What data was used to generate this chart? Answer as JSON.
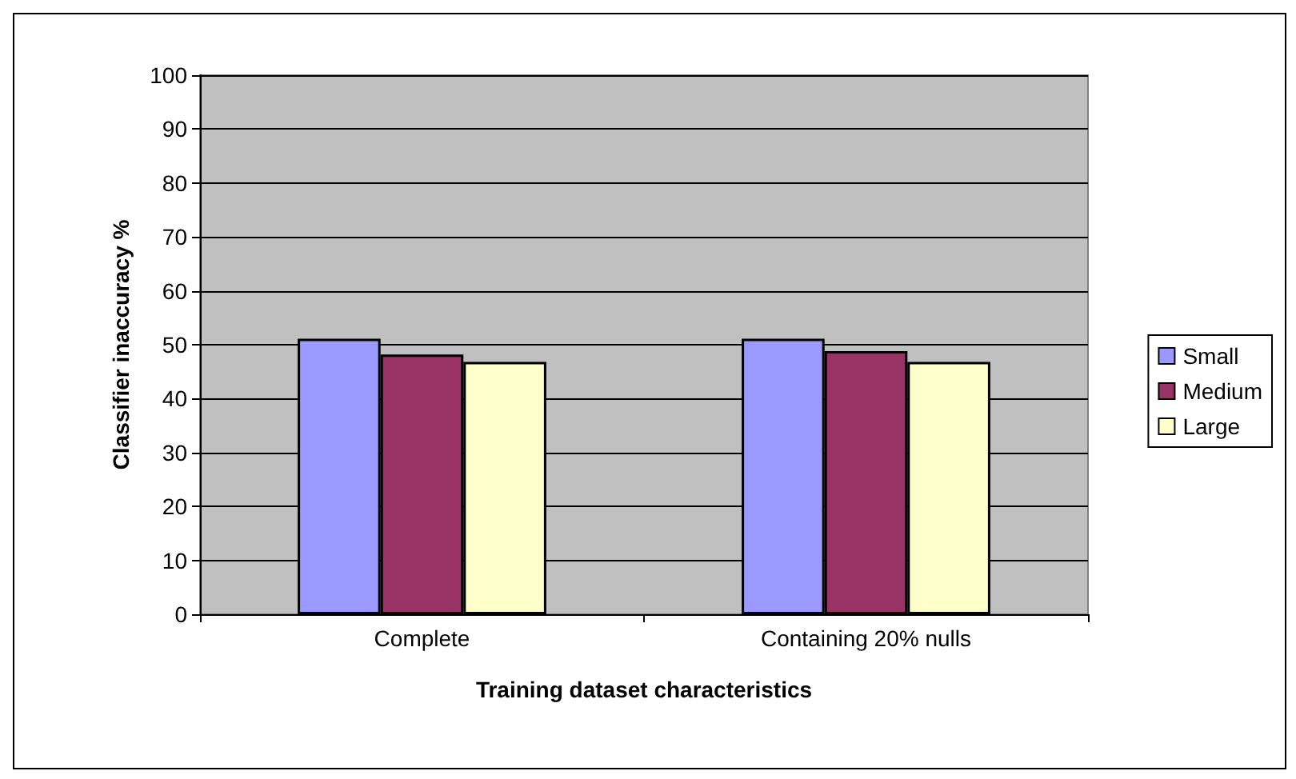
{
  "chart_data": {
    "type": "bar",
    "xlabel": "Training dataset characteristics",
    "ylabel": "Classifier inaccuracy %",
    "categories": [
      "Complete",
      "Containing 20% nulls"
    ],
    "series": [
      {
        "name": "Small",
        "color": "#9999ff",
        "values": [
          51.1,
          51.1
        ]
      },
      {
        "name": "Medium",
        "color": "#993366",
        "values": [
          48.2,
          48.8
        ]
      },
      {
        "name": "Large",
        "color": "#ffffcc",
        "values": [
          46.8,
          46.8
        ]
      }
    ],
    "ylim": [
      0,
      100
    ],
    "yticks": [
      0,
      10,
      20,
      30,
      40,
      50,
      60,
      70,
      80,
      90,
      100
    ],
    "grid": "y",
    "legend": "right"
  }
}
